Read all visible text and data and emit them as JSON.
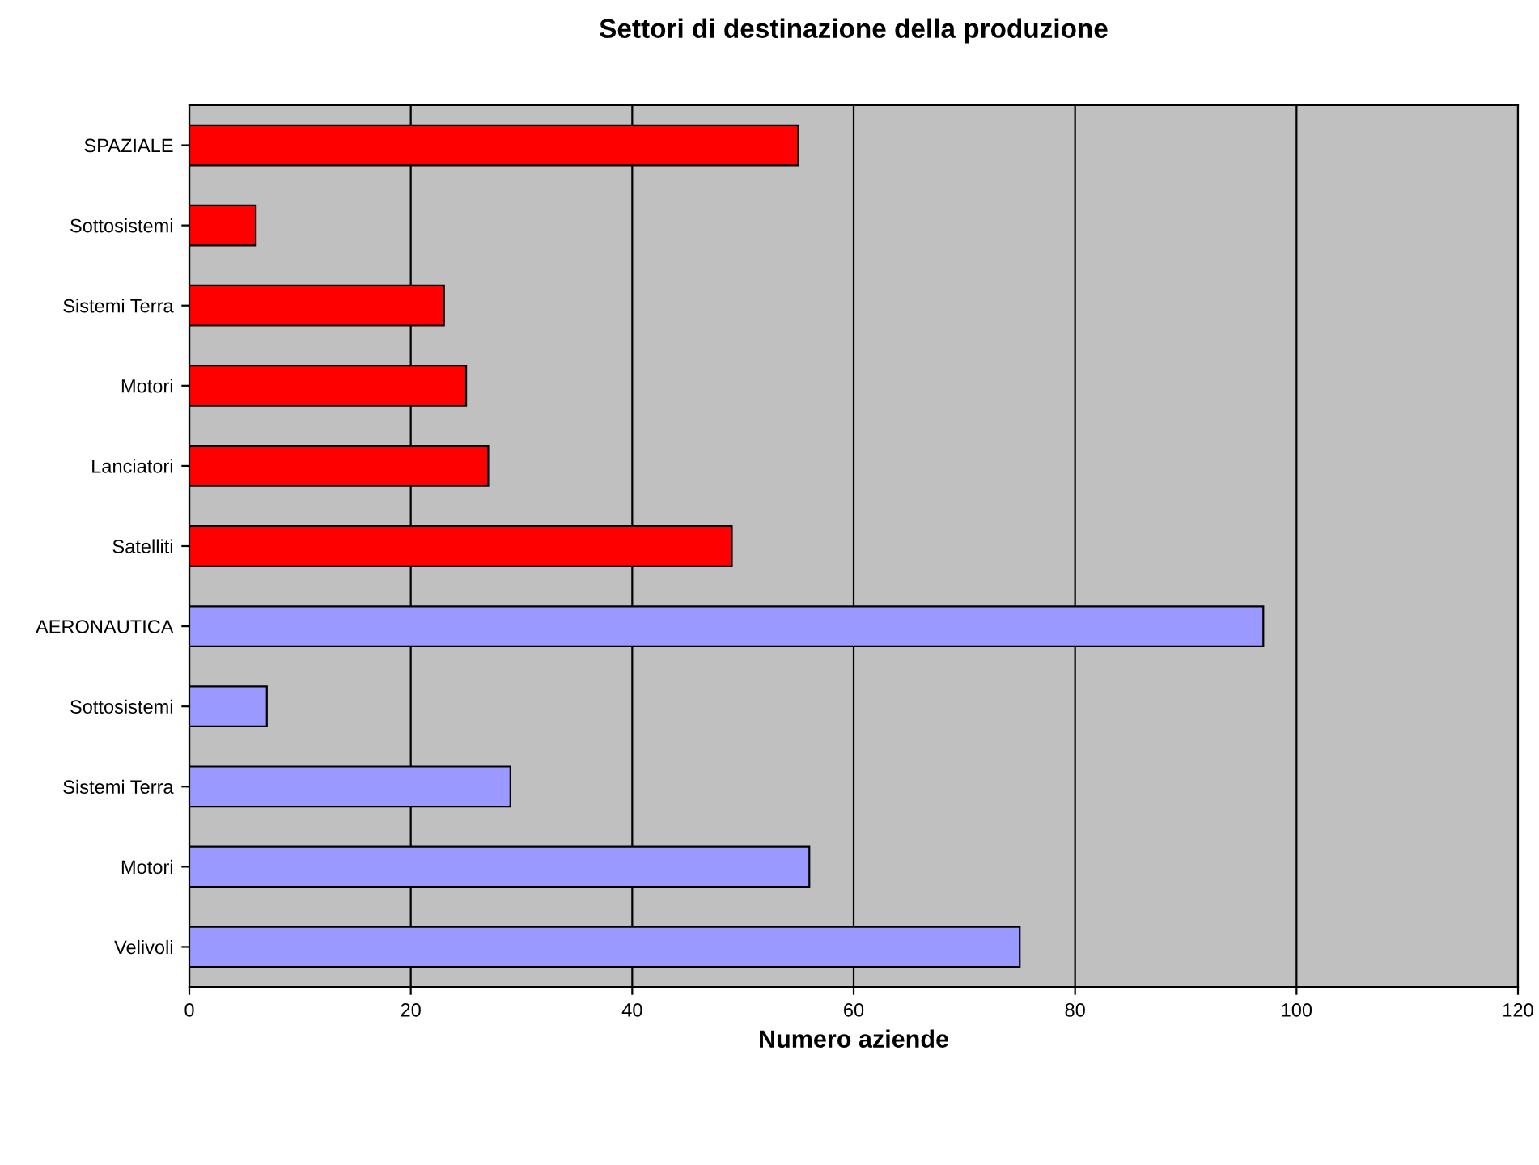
{
  "chart_data": {
    "type": "bar",
    "orientation": "horizontal",
    "title": "Settori di destinazione della produzione",
    "xlabel": "Numero aziende",
    "categories": [
      "SPAZIALE",
      "Sottosistemi",
      "Sistemi Terra",
      "Motori",
      "Lanciatori",
      "Satelliti",
      "AERONAUTICA",
      "Sottosistemi",
      "Sistemi Terra",
      "Motori",
      "Velivoli"
    ],
    "values": [
      55,
      6,
      23,
      25,
      27,
      49,
      97,
      7,
      29,
      56,
      75
    ],
    "colors": [
      "#ff0000",
      "#ff0000",
      "#ff0000",
      "#ff0000",
      "#ff0000",
      "#ff0000",
      "#9999ff",
      "#9999ff",
      "#9999ff",
      "#9999ff",
      "#9999ff"
    ],
    "xlim": [
      0,
      120
    ],
    "xticks": [
      0,
      20,
      40,
      60,
      80,
      100,
      120
    ],
    "grid": "x",
    "legend": false
  }
}
